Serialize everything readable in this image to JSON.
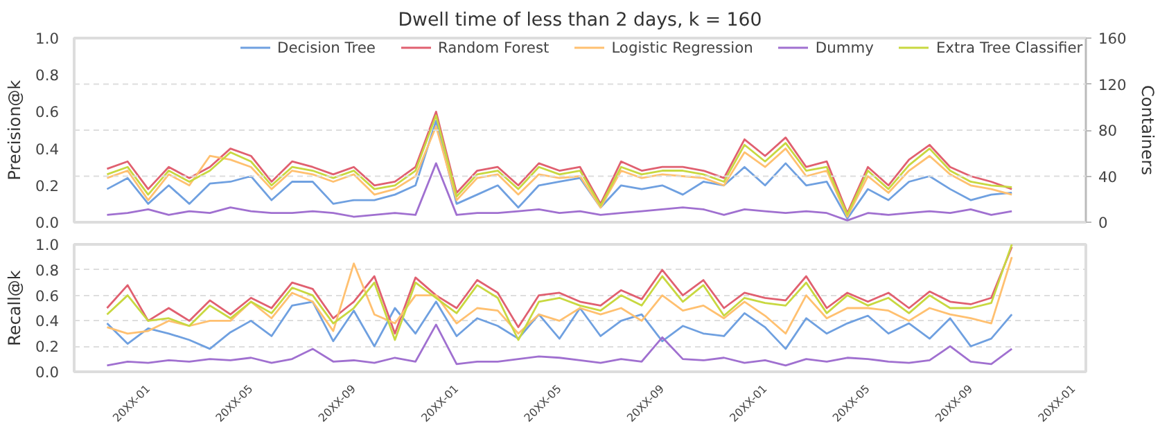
{
  "chart_data": [
    {
      "type": "line",
      "title": "Dwell time of less than 2 days, k = 160",
      "ylabel": "Precision@k",
      "y2label": "Containers",
      "categories": [
        null,
        null,
        null,
        null,
        null,
        null,
        null,
        null,
        null,
        null,
        null,
        null,
        null,
        null,
        null,
        null,
        null,
        null,
        null,
        null,
        null,
        null,
        null,
        null,
        null,
        null,
        null,
        null,
        null,
        null,
        null,
        null,
        null,
        null,
        null,
        null,
        null,
        null,
        null,
        null,
        null,
        null,
        null,
        null,
        null,
        null,
        null,
        null
      ],
      "series": [
        {
          "name": "Decision Tree",
          "color": "#6fa0e0",
          "values": [
            0.18,
            0.24,
            0.1,
            0.2,
            0.1,
            0.21,
            0.22,
            0.25,
            0.12,
            0.22,
            0.22,
            0.1,
            0.12,
            0.12,
            0.15,
            0.2,
            0.55,
            0.1,
            0.15,
            0.2,
            0.08,
            0.2,
            0.22,
            0.24,
            0.08,
            0.2,
            0.18,
            0.2,
            0.15,
            0.22,
            0.2,
            0.3,
            0.2,
            0.32,
            0.2,
            0.22,
            0.02,
            0.18,
            0.12,
            0.22,
            0.25,
            0.18,
            0.12,
            0.15,
            0.16,
            null,
            null,
            null
          ]
        },
        {
          "name": "Random Forest",
          "color": "#e06070",
          "values": [
            0.29,
            0.33,
            0.18,
            0.3,
            0.24,
            0.3,
            0.4,
            0.36,
            0.22,
            0.33,
            0.3,
            0.26,
            0.3,
            0.2,
            0.22,
            0.3,
            0.6,
            0.16,
            0.28,
            0.3,
            0.2,
            0.32,
            0.28,
            0.3,
            0.1,
            0.33,
            0.28,
            0.3,
            0.3,
            0.28,
            0.24,
            0.45,
            0.36,
            0.46,
            0.3,
            0.33,
            0.05,
            0.3,
            0.2,
            0.34,
            0.42,
            0.3,
            0.25,
            0.22,
            0.18,
            null,
            null,
            null
          ]
        },
        {
          "name": "Logistic Regression",
          "color": "#ffc070",
          "values": [
            0.24,
            0.28,
            0.12,
            0.26,
            0.2,
            0.36,
            0.34,
            0.3,
            0.18,
            0.28,
            0.26,
            0.22,
            0.26,
            0.15,
            0.18,
            0.25,
            0.52,
            0.12,
            0.24,
            0.26,
            0.15,
            0.26,
            0.24,
            0.25,
            0.08,
            0.28,
            0.24,
            0.26,
            0.25,
            0.24,
            0.2,
            0.38,
            0.3,
            0.4,
            0.25,
            0.28,
            0.03,
            0.25,
            0.16,
            0.28,
            0.36,
            0.26,
            0.2,
            0.18,
            0.15,
            null,
            null,
            null
          ]
        },
        {
          "name": "Dummy",
          "color": "#a070d0",
          "values": [
            0.04,
            0.05,
            0.07,
            0.04,
            0.06,
            0.05,
            0.08,
            0.06,
            0.05,
            0.05,
            0.06,
            0.05,
            0.03,
            0.04,
            0.05,
            0.04,
            0.32,
            0.04,
            0.05,
            0.05,
            0.06,
            0.07,
            0.05,
            0.06,
            0.04,
            0.05,
            0.06,
            0.07,
            0.08,
            0.07,
            0.04,
            0.07,
            0.06,
            0.05,
            0.06,
            0.05,
            0.01,
            0.05,
            0.04,
            0.05,
            0.06,
            0.05,
            0.07,
            0.04,
            0.06,
            null,
            null,
            null
          ]
        },
        {
          "name": "Extra Tree Classifier",
          "color": "#c8d840",
          "values": [
            0.26,
            0.3,
            0.15,
            0.28,
            0.22,
            0.28,
            0.38,
            0.33,
            0.2,
            0.3,
            0.28,
            0.24,
            0.28,
            0.18,
            0.2,
            0.28,
            0.58,
            0.14,
            0.26,
            0.28,
            0.18,
            0.3,
            0.26,
            0.28,
            0.09,
            0.3,
            0.26,
            0.28,
            0.28,
            0.26,
            0.22,
            0.42,
            0.33,
            0.43,
            0.28,
            0.3,
            0.04,
            0.28,
            0.18,
            0.31,
            0.4,
            0.28,
            0.22,
            0.2,
            0.19,
            null,
            null,
            null
          ]
        }
      ],
      "ylim": [
        0,
        1
      ],
      "yticks": [
        {
          "value": 0,
          "label": "0.0"
        },
        {
          "value": 0.2,
          "label": "0.2"
        },
        {
          "value": 0.4,
          "label": "0.4"
        },
        {
          "value": 0.6,
          "label": "0.6"
        },
        {
          "value": 0.8,
          "label": "0.8"
        },
        {
          "value": 1,
          "label": "1.0"
        }
      ],
      "y2lim": [
        0,
        160
      ],
      "y2ticks": [
        0,
        40,
        80,
        120,
        160
      ],
      "grid": "y2",
      "legend": "top",
      "tick_labels": "y"
    },
    {
      "type": "line",
      "ylabel": "Recall@k",
      "categories": [
        null,
        null,
        "20XX-01",
        null,
        null,
        null,
        null,
        "20XX-05",
        null,
        null,
        null,
        null,
        "20XX-09",
        null,
        null,
        null,
        null,
        "20XX-01",
        null,
        null,
        null,
        null,
        "20XX-05",
        null,
        null,
        null,
        null,
        "20XX-09",
        null,
        null,
        null,
        null,
        "20XX-01",
        null,
        null,
        null,
        null,
        "20XX-05",
        null,
        null,
        null,
        null,
        "20XX-09",
        null,
        null,
        null,
        null,
        "20XX-01"
      ],
      "series": [
        {
          "color": "#6fa0e0",
          "values": [
            0.38,
            0.22,
            0.34,
            0.3,
            0.25,
            0.18,
            0.31,
            0.4,
            0.28,
            0.52,
            0.55,
            0.24,
            0.48,
            0.2,
            0.5,
            0.3,
            0.55,
            0.28,
            0.42,
            0.36,
            0.26,
            0.45,
            0.26,
            0.5,
            0.28,
            0.4,
            0.45,
            0.24,
            0.36,
            0.3,
            0.28,
            0.46,
            0.35,
            0.18,
            0.42,
            0.3,
            0.38,
            0.44,
            0.3,
            0.38,
            0.26,
            0.42,
            0.2,
            0.26,
            0.45,
            null,
            null,
            null
          ]
        },
        {
          "color": "#e06070",
          "values": [
            0.5,
            0.68,
            0.4,
            0.5,
            0.4,
            0.56,
            0.45,
            0.58,
            0.5,
            0.7,
            0.65,
            0.42,
            0.55,
            0.75,
            0.3,
            0.74,
            0.6,
            0.5,
            0.72,
            0.62,
            0.35,
            0.6,
            0.62,
            0.55,
            0.52,
            0.64,
            0.57,
            0.8,
            0.6,
            0.72,
            0.5,
            0.62,
            0.58,
            0.56,
            0.75,
            0.5,
            0.62,
            0.55,
            0.62,
            0.5,
            0.63,
            0.55,
            0.53,
            0.58,
            0.98,
            null,
            null,
            null
          ]
        },
        {
          "color": "#ffc070",
          "values": [
            0.35,
            0.3,
            0.32,
            0.4,
            0.36,
            0.4,
            0.4,
            0.55,
            0.42,
            0.62,
            0.55,
            0.32,
            0.85,
            0.45,
            0.38,
            0.6,
            0.6,
            0.38,
            0.5,
            0.48,
            0.3,
            0.45,
            0.4,
            0.5,
            0.45,
            0.5,
            0.4,
            0.6,
            0.48,
            0.52,
            0.42,
            0.55,
            0.44,
            0.3,
            0.6,
            0.42,
            0.5,
            0.5,
            0.48,
            0.4,
            0.5,
            0.45,
            0.42,
            0.38,
            0.9,
            null,
            null,
            null
          ]
        },
        {
          "color": "#a070d0",
          "values": [
            0.05,
            0.08,
            0.07,
            0.09,
            0.08,
            0.1,
            0.09,
            0.11,
            0.07,
            0.1,
            0.18,
            0.08,
            0.09,
            0.07,
            0.11,
            0.08,
            0.37,
            0.06,
            0.08,
            0.08,
            0.1,
            0.12,
            0.11,
            0.09,
            0.07,
            0.1,
            0.08,
            0.27,
            0.1,
            0.09,
            0.11,
            0.07,
            0.09,
            0.05,
            0.1,
            0.08,
            0.11,
            0.1,
            0.08,
            0.07,
            0.09,
            0.2,
            0.08,
            0.06,
            0.18,
            null,
            null,
            null
          ]
        },
        {
          "color": "#c8d840",
          "values": [
            0.45,
            0.6,
            0.4,
            0.42,
            0.36,
            0.52,
            0.42,
            0.55,
            0.46,
            0.66,
            0.6,
            0.38,
            0.5,
            0.7,
            0.25,
            0.7,
            0.58,
            0.46,
            0.68,
            0.58,
            0.25,
            0.55,
            0.58,
            0.52,
            0.48,
            0.6,
            0.52,
            0.75,
            0.55,
            0.68,
            0.44,
            0.58,
            0.54,
            0.52,
            0.7,
            0.46,
            0.6,
            0.52,
            0.58,
            0.46,
            0.6,
            0.5,
            0.5,
            0.54,
            1.0,
            null,
            null,
            null
          ]
        }
      ],
      "ylim": [
        0,
        1
      ],
      "yticks": [
        {
          "value": 0,
          "label": "0.0"
        },
        {
          "value": 0.2,
          "label": "0.2"
        },
        {
          "value": 0.4,
          "label": "0.4"
        },
        {
          "value": 0.6,
          "label": "0.6"
        },
        {
          "value": 0.8,
          "label": "0.8"
        },
        {
          "value": 1,
          "label": "1.0"
        }
      ],
      "grid": "y"
    }
  ]
}
